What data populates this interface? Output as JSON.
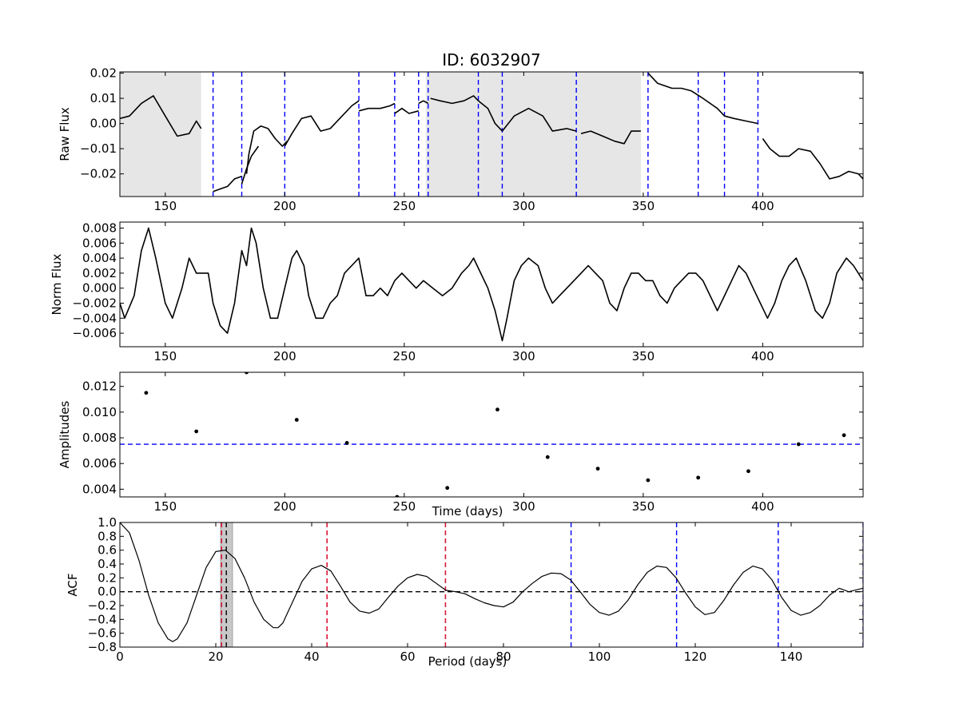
{
  "chart_data": [
    {
      "type": "line",
      "title": "ID: 6032907",
      "xlabel": "",
      "ylabel": "Raw Flux",
      "xlim": [
        131,
        442
      ],
      "ylim": [
        -0.029,
        0.0205
      ],
      "xticks": [
        150,
        200,
        250,
        300,
        350,
        400
      ],
      "yticks": [
        -0.02,
        -0.01,
        0.0,
        0.01,
        0.02
      ],
      "ytick_labels": [
        "−0.02",
        "−0.01",
        "0.00",
        "0.01",
        "0.02"
      ],
      "shaded_spans": [
        [
          131,
          165
        ],
        [
          259,
          349
        ]
      ],
      "vlines": [
        170,
        182,
        200,
        231,
        246,
        256,
        260,
        281,
        291,
        322,
        352,
        373,
        384,
        398
      ],
      "vline_color": "#0000ff",
      "line_color": "#000000",
      "series": [
        {
          "segments": [
            {
              "x": [
                131,
                135,
                140,
                145,
                150,
                155,
                160,
                163,
                165
              ],
              "y": [
                0.002,
                0.003,
                0.008,
                0.011,
                0.003,
                -0.005,
                -0.004,
                0.001,
                -0.002
              ]
            },
            {
              "x": [
                170,
                173,
                176,
                179,
                182
              ],
              "y": [
                -0.027,
                -0.026,
                -0.025,
                -0.022,
                -0.021
              ]
            },
            {
              "x": [
                182,
                184,
                186,
                189
              ],
              "y": [
                -0.024,
                -0.018,
                -0.013,
                -0.009
              ]
            },
            {
              "x": [
                184,
                185,
                187,
                190,
                193,
                196,
                199,
                201
              ],
              "y": [
                -0.02,
                -0.012,
                -0.003,
                -0.001,
                -0.002,
                -0.006,
                -0.009,
                -0.007
              ]
            },
            {
              "x": [
                200,
                203,
                207,
                211,
                215,
                219,
                224,
                228,
                231
              ],
              "y": [
                -0.009,
                -0.004,
                0.002,
                0.003,
                -0.003,
                -0.002,
                0.003,
                0.007,
                0.009
              ]
            },
            {
              "x": [
                231,
                235,
                240,
                244,
                246
              ],
              "y": [
                0.005,
                0.006,
                0.006,
                0.007,
                0.008
              ]
            },
            {
              "x": [
                246,
                249,
                252,
                256
              ],
              "y": [
                0.004,
                0.006,
                0.004,
                0.005
              ]
            },
            {
              "x": [
                256,
                258,
                260
              ],
              "y": [
                0.008,
                0.009,
                0.008
              ]
            },
            {
              "x": [
                261,
                265,
                270,
                275,
                279,
                281
              ],
              "y": [
                0.01,
                0.009,
                0.008,
                0.009,
                0.011,
                0.009
              ]
            },
            {
              "x": [
                281,
                285,
                288,
                291
              ],
              "y": [
                0.009,
                0.006,
                0.0,
                -0.003
              ]
            },
            {
              "x": [
                291,
                296,
                302,
                308,
                312,
                318,
                322
              ],
              "y": [
                -0.003,
                0.003,
                0.006,
                0.003,
                -0.003,
                -0.002,
                -0.003
              ]
            },
            {
              "x": [
                324,
                328,
                333,
                338,
                342,
                345,
                349
              ],
              "y": [
                -0.004,
                -0.003,
                -0.005,
                -0.007,
                -0.008,
                -0.003,
                -0.003
              ]
            },
            {
              "x": [
                352,
                356,
                362,
                366,
                370,
                375,
                381,
                384
              ],
              "y": [
                0.02,
                0.016,
                0.014,
                0.014,
                0.013,
                0.01,
                0.006,
                0.003
              ]
            },
            {
              "x": [
                384,
                388,
                393,
                398
              ],
              "y": [
                0.003,
                0.002,
                0.001,
                0.0
              ]
            },
            {
              "x": [
                400,
                403,
                407,
                411,
                415,
                420,
                424,
                428,
                432,
                436,
                440,
                442
              ],
              "y": [
                -0.006,
                -0.01,
                -0.013,
                -0.013,
                -0.01,
                -0.011,
                -0.016,
                -0.022,
                -0.021,
                -0.019,
                -0.02,
                -0.022
              ]
            }
          ]
        }
      ]
    },
    {
      "type": "line",
      "title": "",
      "xlabel": "",
      "ylabel": "Norm Flux",
      "xlim": [
        131,
        442
      ],
      "ylim": [
        -0.0078,
        0.0088
      ],
      "xticks": [
        150,
        200,
        250,
        300,
        350,
        400
      ],
      "yticks": [
        -0.006,
        -0.004,
        -0.002,
        0.0,
        0.002,
        0.004,
        0.006,
        0.008
      ],
      "ytick_labels": [
        "−0.006",
        "−0.004",
        "−0.002",
        "0.000",
        "0.002",
        "0.004",
        "0.006",
        "0.008"
      ],
      "line_color": "#000000",
      "series": [
        {
          "x": [
            131,
            133,
            137,
            140,
            143,
            146,
            150,
            153,
            157,
            160,
            163,
            166,
            168,
            170,
            173,
            176,
            179,
            182,
            184,
            186,
            188,
            191,
            194,
            197,
            200,
            203,
            205,
            208,
            210,
            213,
            216,
            219,
            222,
            225,
            228,
            231,
            234,
            237,
            240,
            243,
            246,
            249,
            252,
            255,
            258,
            262,
            266,
            270,
            274,
            277,
            279,
            282,
            285,
            288,
            291,
            293,
            296,
            299,
            302,
            306,
            309,
            312,
            315,
            318,
            321,
            324,
            327,
            330,
            333,
            336,
            339,
            342,
            345,
            348,
            351,
            354,
            357,
            360,
            363,
            366,
            369,
            372,
            375,
            378,
            381,
            384,
            387,
            390,
            393,
            396,
            399,
            402,
            405,
            408,
            411,
            414,
            418,
            422,
            425,
            428,
            431,
            435,
            438,
            442
          ],
          "y": [
            -0.002,
            -0.004,
            -0.001,
            0.005,
            0.008,
            0.004,
            -0.002,
            -0.004,
            0.0,
            0.004,
            0.002,
            0.002,
            0.002,
            -0.002,
            -0.005,
            -0.006,
            -0.002,
            0.005,
            0.003,
            0.008,
            0.006,
            0.0,
            -0.004,
            -0.004,
            0.0,
            0.004,
            0.005,
            0.003,
            -0.001,
            -0.004,
            -0.004,
            -0.002,
            -0.001,
            0.002,
            0.003,
            0.004,
            -0.001,
            -0.001,
            0.0,
            -0.001,
            0.001,
            0.002,
            0.001,
            0.0,
            0.001,
            0.0,
            -0.001,
            0.0,
            0.002,
            0.003,
            0.004,
            0.002,
            0.0,
            -0.003,
            -0.007,
            -0.004,
            0.001,
            0.003,
            0.004,
            0.003,
            0.0,
            -0.002,
            -0.001,
            0.0,
            0.001,
            0.002,
            0.003,
            0.002,
            0.001,
            -0.002,
            -0.003,
            0.0,
            0.002,
            0.002,
            0.001,
            0.001,
            -0.001,
            -0.002,
            0.0,
            0.001,
            0.002,
            0.002,
            0.001,
            -0.001,
            -0.003,
            -0.001,
            0.001,
            0.003,
            0.002,
            0.0,
            -0.002,
            -0.004,
            -0.002,
            0.001,
            0.003,
            0.004,
            0.001,
            -0.003,
            -0.004,
            -0.002,
            0.002,
            0.004,
            0.003,
            0.001
          ]
        }
      ]
    },
    {
      "type": "scatter",
      "title": "",
      "xlabel": "Time (days)",
      "ylabel": "Amplitudes",
      "xlim": [
        131,
        442
      ],
      "ylim": [
        0.0034,
        0.0131
      ],
      "xticks": [
        150,
        200,
        250,
        300,
        350,
        400
      ],
      "yticks": [
        0.004,
        0.006,
        0.008,
        0.01,
        0.012
      ],
      "ytick_labels": [
        "0.004",
        "0.006",
        "0.008",
        "0.010",
        "0.012"
      ],
      "hline": 0.0075,
      "hline_color": "#0000ff",
      "series": [
        {
          "x": [
            142,
            163,
            184,
            205,
            226,
            247,
            268,
            289,
            310,
            331,
            352,
            373,
            394,
            415,
            434
          ],
          "y": [
            0.0115,
            0.0085,
            0.0131,
            0.0094,
            0.0076,
            0.0034,
            0.0041,
            0.0102,
            0.0065,
            0.0056,
            0.0047,
            0.0049,
            0.0054,
            0.0075,
            0.0082
          ]
        }
      ]
    },
    {
      "type": "line",
      "title": "",
      "xlabel": "Period (days)",
      "ylabel": "ACF",
      "xlim": [
        0,
        155
      ],
      "ylim": [
        -0.8,
        1.0
      ],
      "xticks": [
        0,
        20,
        40,
        60,
        80,
        100,
        120,
        140
      ],
      "yticks": [
        -0.8,
        -0.6,
        -0.4,
        -0.2,
        0.0,
        0.2,
        0.4,
        0.6,
        0.8,
        1.0
      ],
      "ytick_labels": [
        "−0.8",
        "−0.6",
        "−0.4",
        "−0.2",
        "0.0",
        "0.2",
        "0.4",
        "0.6",
        "0.8",
        "1.0"
      ],
      "hline": 0.0,
      "hline_color": "#000000",
      "shaded_span": [
        21,
        23.5
      ],
      "vline_period": 22.2,
      "vlines_red": [
        21.2,
        43.2,
        67.9
      ],
      "vlines_blue": [
        94.1,
        116.1,
        137.3,
        155.0
      ],
      "series": [
        {
          "x": [
            0,
            2,
            4,
            6,
            8,
            10,
            11,
            12,
            14,
            16,
            18,
            20,
            22,
            24,
            26,
            28,
            30,
            32,
            33,
            34,
            36,
            38,
            40,
            42,
            44,
            46,
            48,
            50,
            52,
            54,
            56,
            58,
            60,
            62,
            64,
            66,
            68,
            70,
            72,
            74,
            76,
            78,
            80,
            82,
            84,
            86,
            88,
            90,
            92,
            94,
            96,
            98,
            100,
            102,
            104,
            106,
            108,
            110,
            112,
            114,
            116,
            118,
            120,
            122,
            124,
            126,
            128,
            130,
            132,
            134,
            136,
            138,
            140,
            142,
            144,
            146,
            148,
            150,
            152,
            155
          ],
          "y": [
            1.0,
            0.85,
            0.45,
            -0.05,
            -0.45,
            -0.68,
            -0.72,
            -0.68,
            -0.45,
            -0.05,
            0.35,
            0.58,
            0.6,
            0.48,
            0.2,
            -0.15,
            -0.4,
            -0.52,
            -0.52,
            -0.45,
            -0.15,
            0.15,
            0.33,
            0.38,
            0.3,
            0.08,
            -0.15,
            -0.28,
            -0.31,
            -0.25,
            -0.08,
            0.08,
            0.2,
            0.25,
            0.22,
            0.12,
            0.02,
            0.0,
            -0.03,
            -0.1,
            -0.16,
            -0.2,
            -0.22,
            -0.15,
            0.0,
            0.12,
            0.22,
            0.27,
            0.26,
            0.17,
            0.0,
            -0.18,
            -0.3,
            -0.34,
            -0.28,
            -0.12,
            0.1,
            0.28,
            0.37,
            0.35,
            0.2,
            -0.02,
            -0.22,
            -0.33,
            -0.3,
            -0.12,
            0.1,
            0.28,
            0.37,
            0.33,
            0.17,
            -0.08,
            -0.27,
            -0.34,
            -0.3,
            -0.2,
            -0.05,
            0.05,
            0.0,
            0.05
          ]
        }
      ]
    }
  ]
}
